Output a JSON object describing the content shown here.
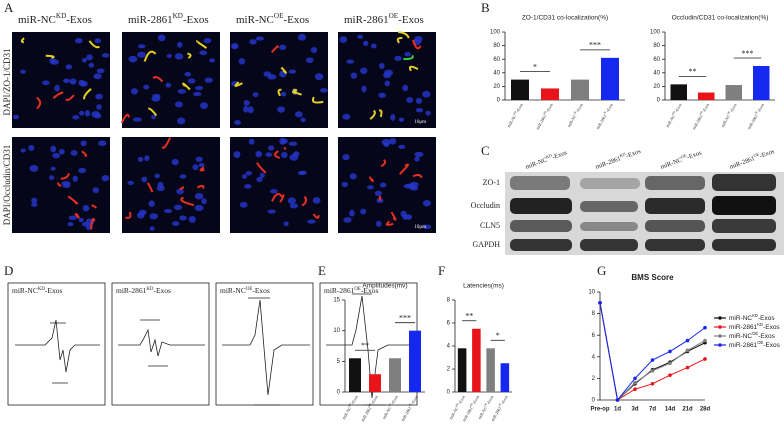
{
  "panels": {
    "a": "A",
    "b": "B",
    "c": "C",
    "d": "D",
    "e": "E",
    "f": "F",
    "g": "G"
  },
  "groups": [
    {
      "base": "miR-NC",
      "sup": "KD",
      "tail": "-Exos"
    },
    {
      "base": "miR-2861",
      "sup": "KD",
      "tail": "-Exos"
    },
    {
      "base": "miR-NC",
      "sup": "OE",
      "tail": "-Exos"
    },
    {
      "base": "miR-2861",
      "sup": "OE",
      "tail": "-Exos"
    }
  ],
  "stains": [
    "DAPI/ZO-1/CD31",
    "DAPI/Occludin/CD31"
  ],
  "scale": "10μm",
  "blot": [
    "ZO-1",
    "Occludin",
    "CLN5",
    "GAPDH"
  ],
  "chart_data": [
    {
      "type": "bar",
      "title": "ZO-1/CD31 co-localization(%)",
      "values": [
        30,
        17,
        30,
        62
      ],
      "colors": [
        "#111111",
        "#e8141a",
        "#7f7f7f",
        "#1428f0"
      ],
      "ylim": [
        0,
        100
      ],
      "yticks": [
        0,
        20,
        40,
        60,
        80,
        100
      ],
      "annotations": [
        "*",
        "***"
      ]
    },
    {
      "type": "bar",
      "title": "Occludin/CD31 co-localization(%)",
      "values": [
        23,
        11,
        22,
        50
      ],
      "colors": [
        "#111111",
        "#e8141a",
        "#7f7f7f",
        "#1428f0"
      ],
      "ylim": [
        0,
        100
      ],
      "yticks": [
        0,
        20,
        40,
        60,
        80,
        100
      ],
      "annotations": [
        "**",
        "***"
      ]
    },
    {
      "type": "bar",
      "title": "Amplitudes(mv)",
      "values": [
        5.5,
        2.9,
        5.5,
        10
      ],
      "colors": [
        "#111111",
        "#e8141a",
        "#7f7f7f",
        "#1428f0"
      ],
      "ylim": [
        0,
        15
      ],
      "yticks": [
        0,
        5,
        10,
        15
      ],
      "annotations": [
        "**",
        "***"
      ]
    },
    {
      "type": "bar",
      "title": "Latencies(ms)",
      "values": [
        3.8,
        5.5,
        3.8,
        2.5
      ],
      "colors": [
        "#111111",
        "#e8141a",
        "#7f7f7f",
        "#1428f0"
      ],
      "ylim": [
        0,
        8
      ],
      "yticks": [
        0,
        2,
        4,
        6,
        8
      ],
      "annotations": [
        "**",
        "*"
      ]
    },
    {
      "type": "line",
      "title": "BMS Score",
      "categories": [
        "Pre-op",
        "1d",
        "3d",
        "7d",
        "14d",
        "21d",
        "28d"
      ],
      "ylim": [
        0,
        10
      ],
      "yticks": [
        0,
        2,
        4,
        6,
        8,
        10
      ],
      "series": [
        {
          "name": "miR-NC",
          "sup": "KD",
          "tail": "-Exos",
          "color": "#111111",
          "values": [
            9,
            0,
            1.5,
            2.8,
            3.5,
            4.5,
            5.3
          ]
        },
        {
          "name": "miR-2861",
          "sup": "KD",
          "tail": "-Exos",
          "color": "#e8141a",
          "values": [
            9,
            0,
            1.0,
            1.5,
            2.3,
            3.0,
            3.8
          ]
        },
        {
          "name": "miR-NC",
          "sup": "OE",
          "tail": "-Exos",
          "color": "#7f7f7f",
          "values": [
            9,
            0,
            1.6,
            2.7,
            3.4,
            4.6,
            5.5
          ]
        },
        {
          "name": "miR-2861",
          "sup": "OE",
          "tail": "-Exos",
          "color": "#1428f0",
          "values": [
            9,
            0,
            2.0,
            3.7,
            4.5,
            5.5,
            6.7
          ]
        }
      ]
    }
  ]
}
